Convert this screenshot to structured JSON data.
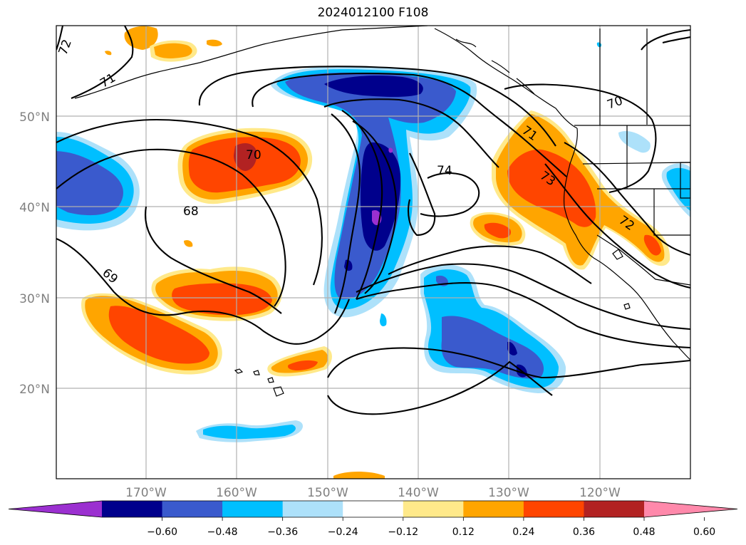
{
  "title": "2024012100 F108",
  "lat_labels": [
    "50°N",
    "40°N",
    "30°N",
    "20°N"
  ],
  "lon_labels": [
    "170°W",
    "160°W",
    "150°W",
    "140°W",
    "130°W",
    "120°W"
  ],
  "contour_labels": [
    "72",
    "71",
    "70",
    "68",
    "69",
    "74",
    "70",
    "71",
    "73",
    "72"
  ],
  "colorbar": {
    "ticks": [
      "−0.60",
      "−0.48",
      "−0.36",
      "−0.24",
      "−0.12",
      "0.12",
      "0.24",
      "0.36",
      "0.48",
      "0.60"
    ],
    "colors": [
      "#9b30d0",
      "#00008c",
      "#3a5acd",
      "#00bfff",
      "#ade1fa",
      "#ffffff",
      "#ffe98a",
      "#ffa500",
      "#ff4500",
      "#b22222",
      "#ff89ab"
    ]
  },
  "fill_colors": {
    "neg1": "#ade1fa",
    "neg2": "#00bfff",
    "neg3": "#3a5acd",
    "neg4": "#00008c",
    "neg5": "#9b30d0",
    "pos1": "#ffe98a",
    "pos2": "#ffa500",
    "pos3": "#ff4500",
    "pos4": "#b22222"
  }
}
